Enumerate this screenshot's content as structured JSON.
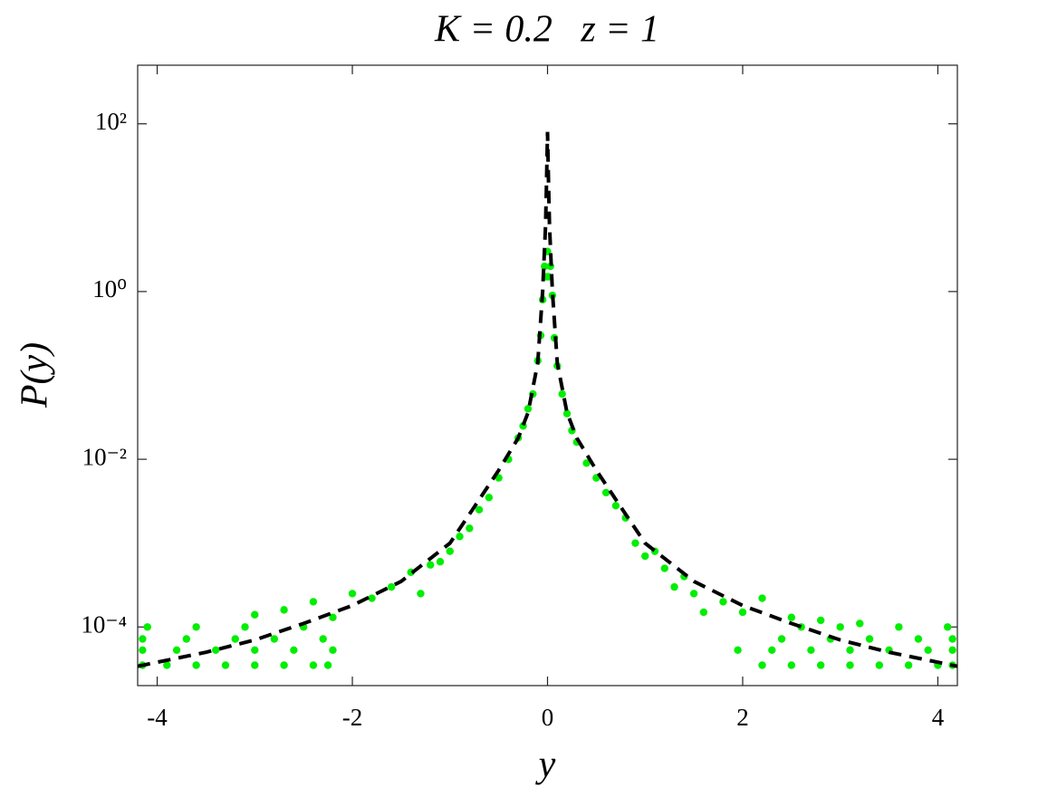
{
  "chart_data": {
    "type": "scatter",
    "title": "K = 0.2   z = 1",
    "x_label": "y",
    "y_label": "P(y)",
    "xlim": [
      -4.2,
      4.2
    ],
    "xticks": [
      -4,
      -2,
      0,
      2,
      4
    ],
    "ylim": [
      2e-05,
      500
    ],
    "y_log": true,
    "yticks": [
      {
        "value": 100,
        "label": "10²"
      },
      {
        "value": 1,
        "label": "10⁰"
      },
      {
        "value": 0.01,
        "label": "10⁻²"
      },
      {
        "value": 0.0001,
        "label": "10⁻⁴"
      }
    ],
    "scatter": {
      "color": "#00ee00",
      "x": [
        -4.15,
        -3.9,
        -3.6,
        -3.3,
        -3.0,
        -2.7,
        -2.4,
        -2.25,
        2.2,
        2.5,
        2.8,
        3.1,
        3.4,
        3.7,
        4.0,
        4.15,
        -4.15,
        -3.8,
        -3.4,
        -3.0,
        -2.6,
        -2.2,
        1.95,
        2.3,
        2.7,
        3.1,
        3.5,
        3.9,
        4.15,
        -4.15,
        -3.7,
        -3.2,
        -2.8,
        -2.3,
        2.4,
        2.9,
        3.3,
        3.8,
        4.15,
        -4.1,
        -3.6,
        -3.1,
        -2.5,
        2.6,
        3.0,
        3.6,
        4.1,
        -3.0,
        -2.7,
        -2.4,
        -2.2,
        -2.0,
        -1.8,
        -1.6,
        -1.4,
        -1.3,
        -1.2,
        -1.1,
        -1.0,
        -0.9,
        -0.8,
        -0.7,
        -0.6,
        -0.5,
        -0.4,
        -0.3,
        -0.25,
        -0.2,
        -0.15,
        -0.1,
        -0.07,
        -0.05,
        -0.03,
        -0.01,
        0,
        0.01,
        0.03,
        0.05,
        0.07,
        0.1,
        0.15,
        0.2,
        0.25,
        0.3,
        0.4,
        0.5,
        0.6,
        0.7,
        0.8,
        0.9,
        1.0,
        1.1,
        1.2,
        1.3,
        1.4,
        1.5,
        1.6,
        1.8,
        2.0,
        2.2,
        2.5,
        2.8,
        3.2
      ],
      "values": [
        3.5e-05,
        3.5e-05,
        3.5e-05,
        3.5e-05,
        3.5e-05,
        3.5e-05,
        3.5e-05,
        3.5e-05,
        3.5e-05,
        3.5e-05,
        3.5e-05,
        3.5e-05,
        3.5e-05,
        3.5e-05,
        3.5e-05,
        3.5e-05,
        5.3e-05,
        5.3e-05,
        5.3e-05,
        5.3e-05,
        5.3e-05,
        5.3e-05,
        5.3e-05,
        5.3e-05,
        5.3e-05,
        5.3e-05,
        5.3e-05,
        5.3e-05,
        5.3e-05,
        7.2e-05,
        7.2e-05,
        7.2e-05,
        7.2e-05,
        7.2e-05,
        7.2e-05,
        7.2e-05,
        7.2e-05,
        7.2e-05,
        7.2e-05,
        0.0001,
        0.0001,
        0.0001,
        0.0001,
        0.0001,
        0.0001,
        0.0001,
        0.0001,
        0.00014,
        0.00016,
        0.0002,
        0.00013,
        0.00025,
        0.00022,
        0.0003,
        0.00045,
        0.00025,
        0.00055,
        0.0006,
        0.0008,
        0.0012,
        0.0015,
        0.0025,
        0.0035,
        0.006,
        0.01,
        0.018,
        0.025,
        0.04,
        0.06,
        0.15,
        0.3,
        0.8,
        2,
        1.5,
        3,
        1.5,
        2,
        0.9,
        0.28,
        0.13,
        0.06,
        0.035,
        0.022,
        0.016,
        0.009,
        0.006,
        0.004,
        0.0028,
        0.002,
        0.001,
        0.0007,
        0.0008,
        0.0005,
        0.0003,
        0.0004,
        0.00025,
        0.00015,
        0.0002,
        0.00015,
        0.00022,
        0.00013,
        0.00012,
        0.00011
      ]
    },
    "line": {
      "color": "#000000",
      "dashed": true,
      "x": [
        -4.2,
        -4,
        -3.5,
        -3,
        -2.5,
        -2,
        -1.5,
        -1,
        -0.75,
        -0.5,
        -0.3,
        -0.2,
        -0.1,
        -0.05,
        -0.02,
        -0.01,
        0,
        0.01,
        0.02,
        0.05,
        0.1,
        0.2,
        0.3,
        0.5,
        0.75,
        1,
        1.5,
        2,
        2.5,
        3,
        3.5,
        4,
        4.2
      ],
      "values": [
        3.4e-05,
        3.8e-05,
        5e-05,
        7e-05,
        0.00011,
        0.00018,
        0.00035,
        0.001,
        0.0027,
        0.0074,
        0.018,
        0.036,
        0.14,
        1,
        6,
        20,
        80,
        20,
        6,
        1,
        0.14,
        0.036,
        0.018,
        0.0074,
        0.0027,
        0.001,
        0.00035,
        0.00018,
        0.00011,
        7e-05,
        5e-05,
        3.8e-05,
        3.4e-05
      ]
    }
  }
}
